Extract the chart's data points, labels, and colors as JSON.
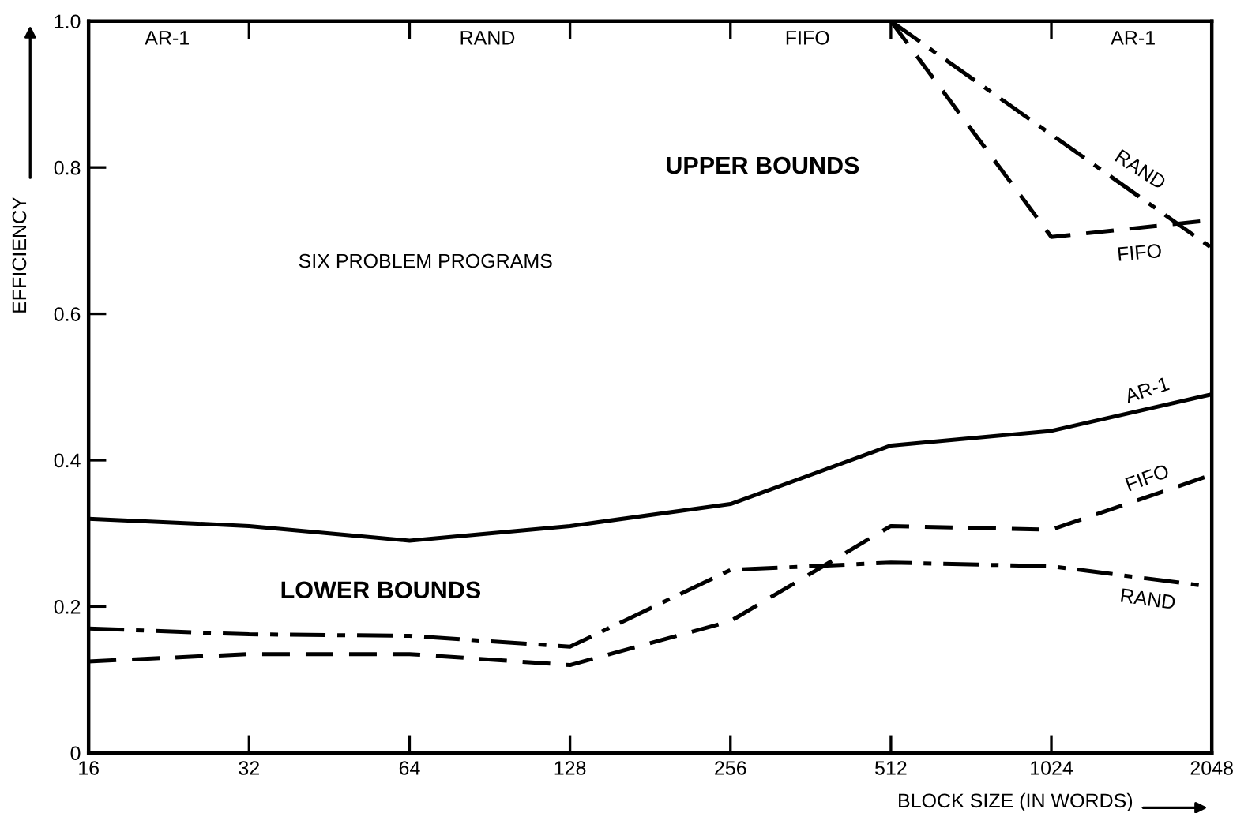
{
  "chart_data": {
    "type": "line",
    "xlabel": "BLOCK SIZE (IN WORDS)",
    "ylabel": "EFFICIENCY",
    "log": "x",
    "x": [
      16,
      32,
      64,
      128,
      256,
      512,
      1024,
      2048
    ],
    "series": [
      {
        "name": "AR-1",
        "color": "#000000",
        "line_style": "solid",
        "values": [
          0.32,
          0.31,
          0.29,
          0.31,
          0.34,
          0.42,
          0.44,
          0.49
        ]
      },
      {
        "name": "FIFO",
        "color": "#000000",
        "line_style": "dashed",
        "values": [
          0.125,
          0.135,
          0.135,
          0.12,
          0.18,
          0.31,
          0.305,
          0.38
        ]
      },
      {
        "name": "RAND",
        "color": "#000000",
        "line_style": "dashdot",
        "values": [
          0.17,
          0.162,
          0.16,
          0.145,
          0.25,
          0.26,
          0.255,
          0.227
        ]
      },
      {
        "name": "RAND",
        "color": "#000000",
        "line_style": "dashdot",
        "x": [
          512,
          1024,
          2048
        ],
        "values": [
          1.0,
          0.845,
          0.69
        ]
      },
      {
        "name": "FIFO",
        "color": "#000000",
        "line_style": "dashed",
        "x": [
          512,
          1024,
          2048
        ],
        "values": [
          1.0,
          0.705,
          0.728
        ]
      }
    ],
    "xlim": [
      16,
      2048
    ],
    "ylim": [
      0,
      1.0
    ],
    "xticks": [
      16,
      32,
      64,
      128,
      256,
      512,
      1024,
      2048
    ],
    "yticks": [
      0,
      0.2,
      0.4,
      0.6,
      0.8,
      {
        "value": 1.0,
        "label": "1.0"
      }
    ],
    "grid": false,
    "legend": false,
    "marker": "none",
    "annotations": [
      "AR-1",
      "RAND",
      "FIFO",
      "AR-1",
      "UPPER BOUNDS",
      "SIX PROBLEM PROGRAMS",
      "LOWER BOUNDS"
    ]
  }
}
